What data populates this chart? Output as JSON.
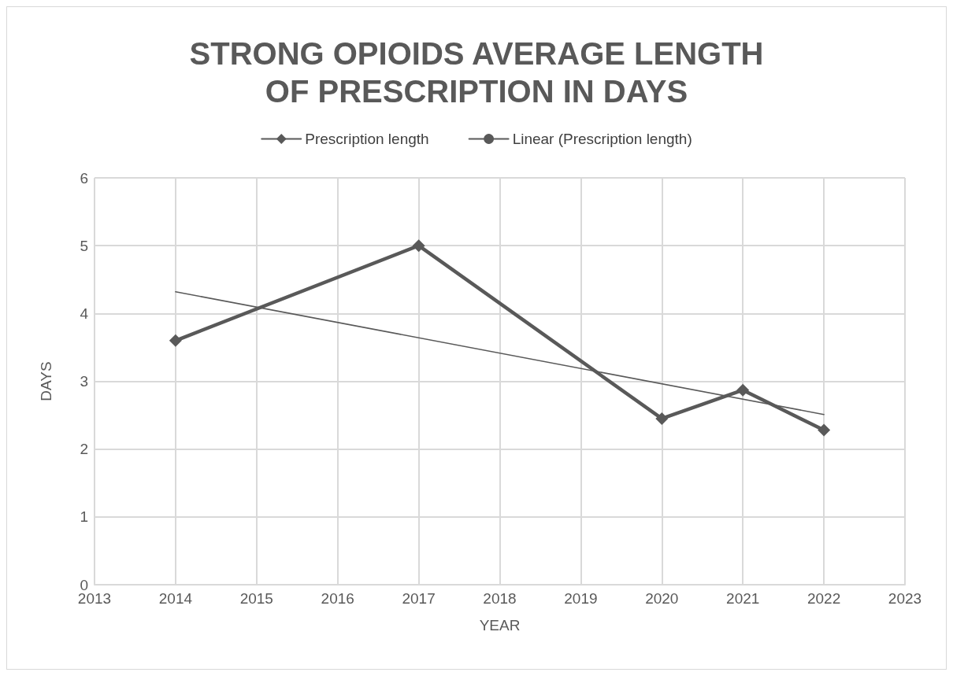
{
  "chart_data": {
    "type": "line",
    "title": "STRONG OPIOIDS AVERAGE LENGTH\nOF PRESCRIPTION IN DAYS",
    "xlabel": "YEAR",
    "ylabel": "DAYS",
    "series": [
      {
        "name": "Prescription length",
        "color": "#595959",
        "marker": "diamond",
        "x": [
          2014,
          2017,
          2020,
          2021,
          2022
        ],
        "values": [
          3.6,
          5.0,
          2.45,
          2.87,
          2.28
        ]
      },
      {
        "name": "Linear (Prescription length)",
        "color": "#595959",
        "marker": "none",
        "x": [
          2014,
          2022
        ],
        "values": [
          4.32,
          2.51
        ]
      }
    ],
    "xlim": [
      2013,
      2023
    ],
    "xticks": [
      2013,
      2014,
      2015,
      2016,
      2017,
      2018,
      2019,
      2020,
      2021,
      2022,
      2023
    ],
    "ylim": [
      0,
      6
    ],
    "yticks": [
      0,
      1,
      2,
      3,
      4,
      5,
      6
    ],
    "grid": true,
    "legend": "top"
  }
}
